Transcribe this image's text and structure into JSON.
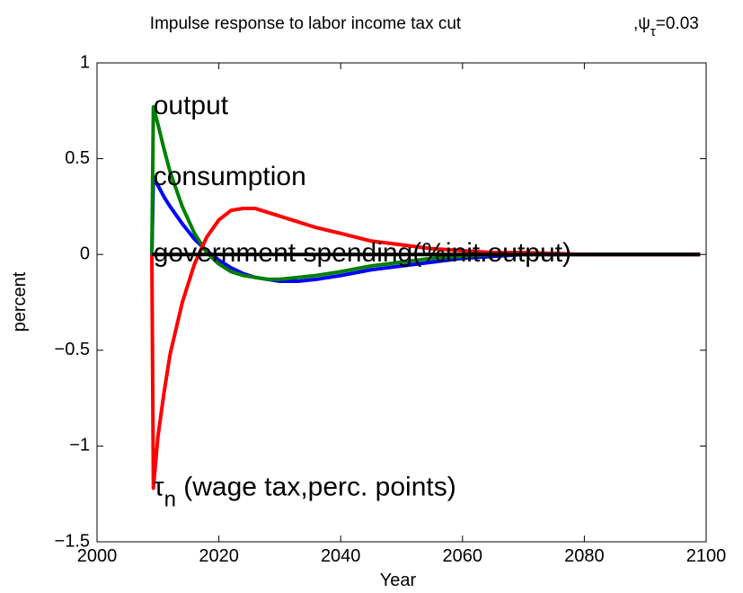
{
  "chart_data": {
    "type": "line",
    "title": "Impulse response to labor income tax cut",
    "title_suffix": [
      ",ψ",
      "τ",
      "=0.03"
    ],
    "xlabel": "Year",
    "ylabel": "percent",
    "x": [
      2009,
      2009.25,
      2010,
      2011,
      2012,
      2014,
      2016,
      2018,
      2020,
      2022,
      2024,
      2026,
      2028,
      2030,
      2033,
      2036,
      2040,
      2045,
      2050,
      2055,
      2060,
      2065,
      2070,
      2080,
      2090,
      2099
    ],
    "series": [
      {
        "name": "consumption",
        "color": "#0000ff",
        "values": [
          0,
          0.4,
          0.36,
          0.3,
          0.25,
          0.16,
          0.08,
          0.02,
          -0.03,
          -0.07,
          -0.1,
          -0.12,
          -0.13,
          -0.14,
          -0.14,
          -0.13,
          -0.11,
          -0.08,
          -0.06,
          -0.04,
          -0.02,
          -0.01,
          0,
          0,
          0,
          0
        ]
      },
      {
        "name": "output",
        "color": "#008000",
        "values": [
          0,
          0.77,
          0.68,
          0.55,
          0.43,
          0.25,
          0.11,
          0.01,
          -0.05,
          -0.09,
          -0.11,
          -0.12,
          -0.13,
          -0.13,
          -0.12,
          -0.11,
          -0.09,
          -0.06,
          -0.04,
          -0.02,
          -0.01,
          0,
          0,
          0,
          0,
          0
        ]
      },
      {
        "name": "τ",
        "name_subscript": "n",
        "name_suffix": " (wage tax,perc. points)",
        "color": "#ff0000",
        "values": [
          0,
          -1.22,
          -0.95,
          -0.72,
          -0.52,
          -0.25,
          -0.05,
          0.09,
          0.18,
          0.23,
          0.24,
          0.24,
          0.22,
          0.2,
          0.17,
          0.14,
          0.11,
          0.07,
          0.05,
          0.03,
          0.02,
          0.01,
          0.01,
          0,
          0,
          0
        ]
      },
      {
        "name": "government spending(%init.output)",
        "color": "#000000",
        "values": [
          0,
          0,
          0,
          0,
          0,
          0,
          0,
          0,
          0,
          0,
          0,
          0,
          0,
          0,
          0,
          0,
          0,
          0,
          0,
          0,
          0,
          0,
          0,
          0,
          0,
          0
        ]
      }
    ],
    "xlim": [
      2000,
      2100
    ],
    "xticks": [
      2000,
      2020,
      2040,
      2060,
      2080,
      2100
    ],
    "ylim": [
      -1.5,
      1
    ],
    "yticks": [
      {
        "value": -1.5,
        "label": "−1.5"
      },
      {
        "value": -1,
        "label": "−1"
      },
      {
        "value": -0.5,
        "label": "−0.5"
      },
      0,
      0.5,
      1
    ],
    "grid": false
  }
}
